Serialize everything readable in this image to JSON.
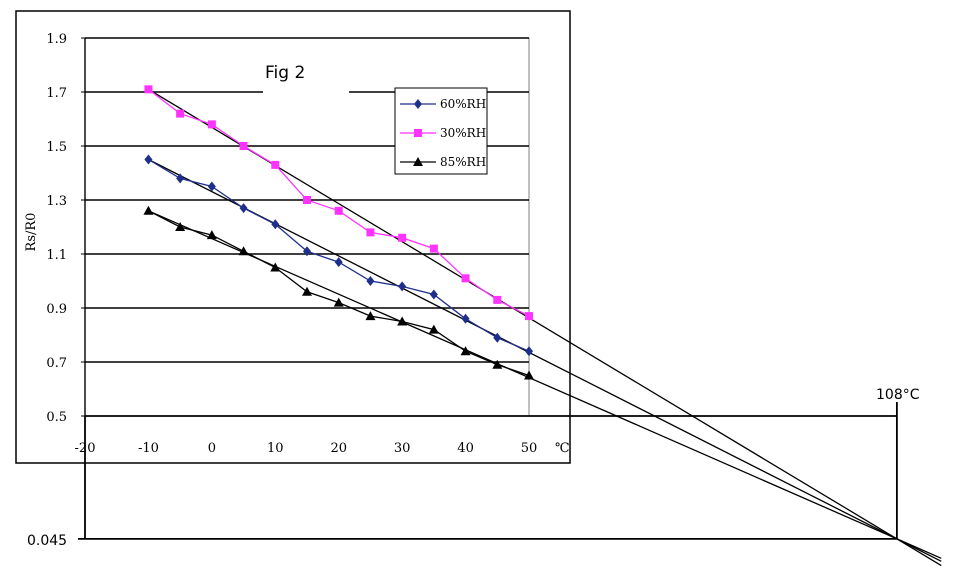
{
  "chart_data": {
    "type": "line",
    "title": "Fig 2",
    "ylabel": "Rs/R0",
    "xlabel": "",
    "x_unit": "℃",
    "xlim": [
      -20,
      50
    ],
    "ylim": [
      0.5,
      1.9
    ],
    "x_ticks": [
      "-20",
      "-10",
      "0",
      "10",
      "20",
      "30",
      "40",
      "50"
    ],
    "y_ticks": [
      "0.5",
      "0.7",
      "0.9",
      "1.1",
      "1.3",
      "1.5",
      "1.7",
      "1.9"
    ],
    "grid": "horizontal",
    "legend_position": "top-right",
    "x": [
      -10,
      -5,
      0,
      5,
      10,
      15,
      20,
      25,
      30,
      35,
      40,
      45,
      50
    ],
    "series": [
      {
        "name": "60%RH",
        "color": "#1f2f8c",
        "marker": "diamond",
        "values": [
          1.45,
          1.38,
          1.35,
          1.27,
          1.21,
          1.11,
          1.07,
          1.0,
          0.98,
          0.95,
          0.86,
          0.79,
          0.74
        ]
      },
      {
        "name": "30%RH",
        "color": "#ff33ff",
        "marker": "square",
        "values": [
          1.71,
          1.62,
          1.58,
          1.5,
          1.43,
          1.3,
          1.26,
          1.18,
          1.16,
          1.12,
          1.01,
          0.93,
          0.87
        ]
      },
      {
        "name": "85%RH",
        "color": "#000000",
        "marker": "triangle",
        "values": [
          1.26,
          1.2,
          1.17,
          1.11,
          1.05,
          0.96,
          0.92,
          0.87,
          0.85,
          0.82,
          0.74,
          0.69,
          0.65
        ]
      }
    ],
    "extrapolation": {
      "x_label": "108°C",
      "y_label": "0.045",
      "converge_x": 108,
      "converge_y": 0.045
    }
  }
}
